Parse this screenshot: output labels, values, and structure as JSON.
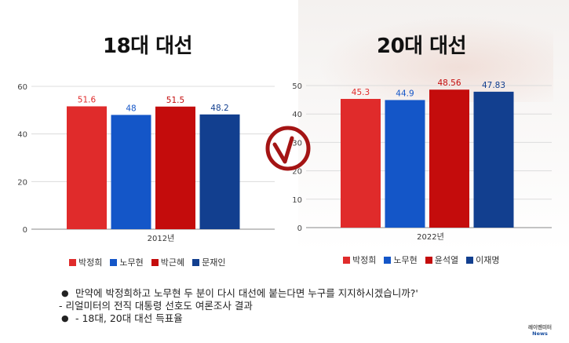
{
  "chart_data": [
    {
      "type": "bar",
      "title": "18대 대선",
      "categories": [
        "2012년"
      ],
      "series": [
        {
          "name": "박정희",
          "values": [
            51.6
          ],
          "color": "#e02b2b"
        },
        {
          "name": "노무현",
          "values": [
            48
          ],
          "color": "#1456c8"
        },
        {
          "name": "박근혜",
          "values": [
            51.5
          ],
          "color": "#c40c0c"
        },
        {
          "name": "문재인",
          "values": [
            48.2
          ],
          "color": "#123f8f"
        }
      ],
      "ylim": [
        0,
        60
      ],
      "yticks": [
        0,
        20,
        40,
        60
      ],
      "grid": true,
      "legend": "bottom"
    },
    {
      "type": "bar",
      "title": "20대 대선",
      "categories": [
        "2022년"
      ],
      "series": [
        {
          "name": "박정희",
          "values": [
            45.3
          ],
          "color": "#e02b2b"
        },
        {
          "name": "노무현",
          "values": [
            44.9
          ],
          "color": "#1456c8"
        },
        {
          "name": "윤석열",
          "values": [
            48.56
          ],
          "color": "#c40c0c"
        },
        {
          "name": "이재명",
          "values": [
            47.83
          ],
          "color": "#123f8f"
        }
      ],
      "ylim": [
        0,
        50
      ],
      "yticks": [
        0,
        10,
        20,
        30,
        40,
        50
      ],
      "grid": true,
      "legend": "bottom"
    }
  ],
  "notes": {
    "line1": "만약에 박정희하고 노무현 두 분이 다시 대선에 붙는다면 누구를 지지하시겠습니까?'",
    "line2": "- 리얼미터의 전직 대통령 선호도 여론조사 결과",
    "line3": "- 18대, 20대 대선 득표율",
    "bullet": "●"
  },
  "logo": {
    "line1": "레이멘미터",
    "line2": "News"
  }
}
